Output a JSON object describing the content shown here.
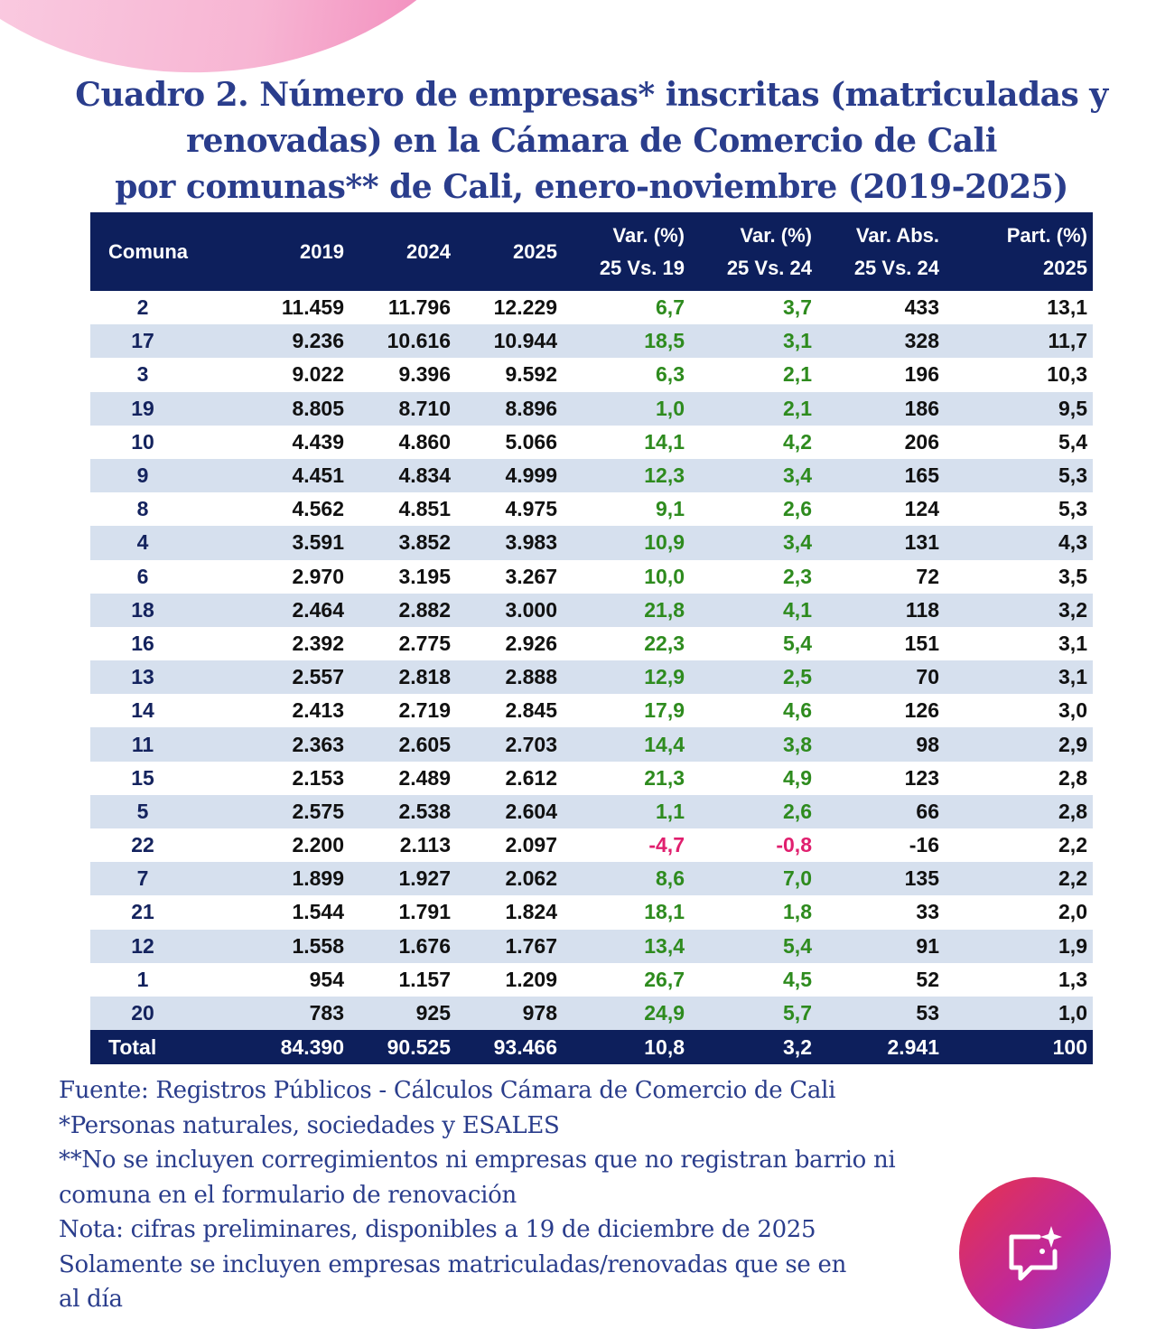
{
  "title": {
    "lines": [
      "Cuadro 2. Número de empresas* inscritas (matriculadas y",
      "renovadas) en la Cámara de Comercio de Cali",
      "por comunas** de Cali, enero-noviembre (2019-2025)"
    ]
  },
  "table": {
    "headers": [
      [
        "Comuna"
      ],
      [
        "2019"
      ],
      [
        "2024"
      ],
      [
        "2025"
      ],
      [
        "Var. (%)",
        "25 Vs. 19"
      ],
      [
        "Var. (%)",
        "25 Vs. 24"
      ],
      [
        "Var. Abs.",
        "25 Vs. 24"
      ],
      [
        "Part. (%)",
        "2025"
      ]
    ],
    "rows": [
      [
        "2",
        "11.459",
        "11.796",
        "12.229",
        "6,7",
        "3,7",
        "433",
        "13,1"
      ],
      [
        "17",
        "9.236",
        "10.616",
        "10.944",
        "18,5",
        "3,1",
        "328",
        "11,7"
      ],
      [
        "3",
        "9.022",
        "9.396",
        "9.592",
        "6,3",
        "2,1",
        "196",
        "10,3"
      ],
      [
        "19",
        "8.805",
        "8.710",
        "8.896",
        "1,0",
        "2,1",
        "186",
        "9,5"
      ],
      [
        "10",
        "4.439",
        "4.860",
        "5.066",
        "14,1",
        "4,2",
        "206",
        "5,4"
      ],
      [
        "9",
        "4.451",
        "4.834",
        "4.999",
        "12,3",
        "3,4",
        "165",
        "5,3"
      ],
      [
        "8",
        "4.562",
        "4.851",
        "4.975",
        "9,1",
        "2,6",
        "124",
        "5,3"
      ],
      [
        "4",
        "3.591",
        "3.852",
        "3.983",
        "10,9",
        "3,4",
        "131",
        "4,3"
      ],
      [
        "6",
        "2.970",
        "3.195",
        "3.267",
        "10,0",
        "2,3",
        "72",
        "3,5"
      ],
      [
        "18",
        "2.464",
        "2.882",
        "3.000",
        "21,8",
        "4,1",
        "118",
        "3,2"
      ],
      [
        "16",
        "2.392",
        "2.775",
        "2.926",
        "22,3",
        "5,4",
        "151",
        "3,1"
      ],
      [
        "13",
        "2.557",
        "2.818",
        "2.888",
        "12,9",
        "2,5",
        "70",
        "3,1"
      ],
      [
        "14",
        "2.413",
        "2.719",
        "2.845",
        "17,9",
        "4,6",
        "126",
        "3,0"
      ],
      [
        "11",
        "2.363",
        "2.605",
        "2.703",
        "14,4",
        "3,8",
        "98",
        "2,9"
      ],
      [
        "15",
        "2.153",
        "2.489",
        "2.612",
        "21,3",
        "4,9",
        "123",
        "2,8"
      ],
      [
        "5",
        "2.575",
        "2.538",
        "2.604",
        "1,1",
        "2,6",
        "66",
        "2,8"
      ],
      [
        "22",
        "2.200",
        "2.113",
        "2.097",
        "-4,7",
        "-0,8",
        "-16",
        "2,2"
      ],
      [
        "7",
        "1.899",
        "1.927",
        "2.062",
        "8,6",
        "7,0",
        "135",
        "2,2"
      ],
      [
        "21",
        "1.544",
        "1.791",
        "1.824",
        "18,1",
        "1,8",
        "33",
        "2,0"
      ],
      [
        "12",
        "1.558",
        "1.676",
        "1.767",
        "13,4",
        "5,4",
        "91",
        "1,9"
      ],
      [
        "1",
        "954",
        "1.157",
        "1.209",
        "26,7",
        "4,5",
        "52",
        "1,3"
      ],
      [
        "20",
        "783",
        "925",
        "978",
        "24,9",
        "5,7",
        "53",
        "1,0"
      ]
    ],
    "total": [
      "Total",
      "84.390",
      "90.525",
      "93.466",
      "10,8",
      "3,2",
      "2.941",
      "100"
    ]
  },
  "notes": [
    "Fuente: Registros Públicos - Cálculos Cámara de Comercio de Cali",
    "*Personas naturales, sociedades y ESALES",
    "**No se incluyen corregimientos ni empresas que no registran barrio ni",
    "comuna en el formulario de renovación",
    "Nota: cifras preliminares, disponibles a 19 de diciembre de 2025",
    "Solamente se incluyen empresas matriculadas/renovadas que se en",
    "al día"
  ],
  "colors": {
    "header_bg": "#0d1f5c",
    "positive": "#2e8b1e",
    "negative": "#e01f6e",
    "title": "#2a3d8c"
  },
  "fab": {
    "icon": "ai-chat-sparkle-icon"
  }
}
